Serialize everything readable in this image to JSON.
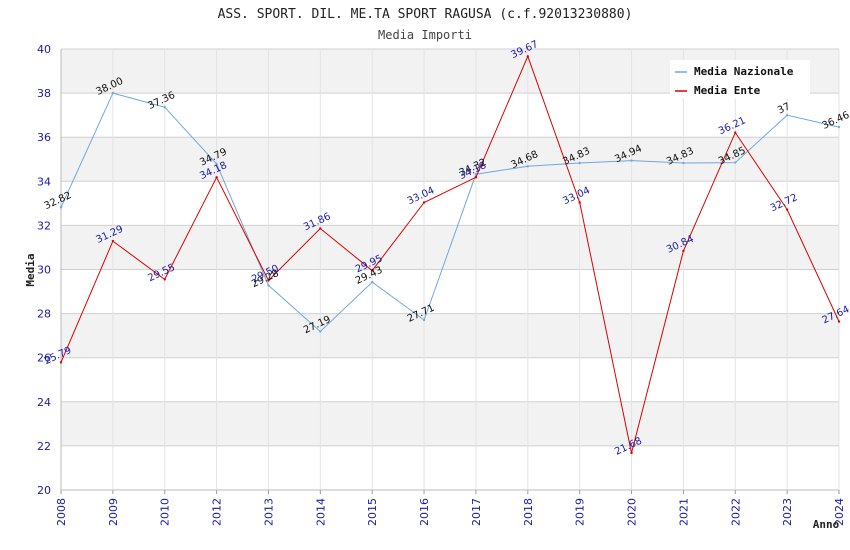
{
  "chart_data": {
    "type": "line",
    "title": "ASS. SPORT. DIL. ME.TA SPORT RAGUSA (c.f.92013230880)",
    "subtitle": "Media Importi",
    "xlabel": "Anno",
    "ylabel": "Media",
    "ylim": [
      20,
      40
    ],
    "yticks": [
      "20",
      "22",
      "24",
      "26",
      "28",
      "30",
      "32",
      "34",
      "36",
      "38",
      "40"
    ],
    "categories": [
      "2008",
      "2009",
      "2010",
      "2012",
      "2013",
      "2014",
      "2015",
      "2016",
      "2017",
      "2018",
      "2019",
      "2020",
      "2021",
      "2022",
      "2023",
      "2024"
    ],
    "legend_position": "top-right",
    "series": [
      {
        "name": "Media Nazionale",
        "color": "#6fa8dc",
        "values": [
          32.82,
          38.0,
          37.36,
          34.79,
          29.28,
          27.19,
          29.43,
          27.71,
          34.32,
          34.68,
          34.83,
          34.94,
          34.83,
          34.85,
          37.0,
          36.46
        ],
        "labels": [
          "32.82",
          "38.00",
          "37.36",
          "34.79",
          "29.28",
          "27.19",
          "29.43",
          "27.71",
          "34.32",
          "34.68",
          "34.83",
          "34.94",
          "34.83",
          "34.85",
          "37",
          "36.46"
        ]
      },
      {
        "name": "Media Ente",
        "color": "#dd0000",
        "values": [
          25.79,
          31.29,
          29.55,
          34.18,
          29.5,
          31.86,
          29.95,
          33.04,
          34.18,
          39.67,
          33.04,
          21.68,
          30.84,
          36.21,
          32.72,
          27.64
        ],
        "labels": [
          "25.79",
          "31.29",
          "29.55",
          "34.18",
          "29.50",
          "31.86",
          "29.95",
          "33.04",
          "34.18",
          "39.67",
          "33.04",
          "21.68",
          "30.84",
          "36.21",
          "32.72",
          "27.64"
        ]
      }
    ]
  }
}
